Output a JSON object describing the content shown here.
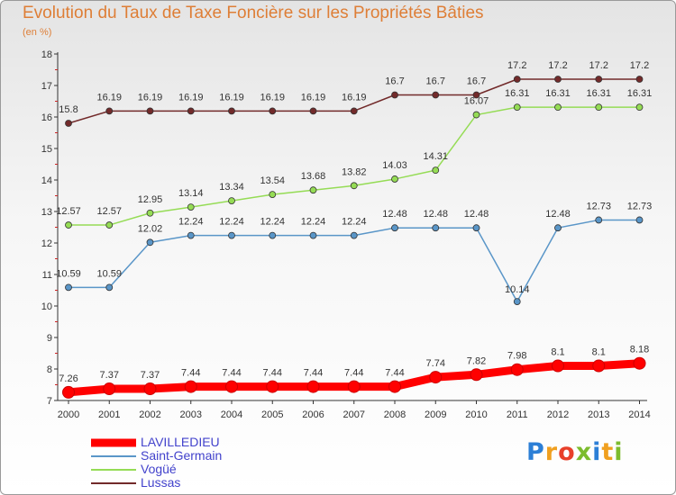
{
  "title": "Evolution du Taux de Taxe Foncière sur les Propriétés Bâties",
  "subtitle": "(en %)",
  "brand": {
    "letters": [
      "P",
      "r",
      "o",
      "x",
      "i",
      "t",
      "i"
    ],
    "colors": [
      "#2c7fd6",
      "#f0a020",
      "#e8402a",
      "#7cbc2e",
      "#2c7fd6",
      "#f0a020",
      "#7cbc2e"
    ]
  },
  "chart_data": {
    "type": "line",
    "x": [
      "2000",
      "2001",
      "2002",
      "2003",
      "2004",
      "2005",
      "2006",
      "2007",
      "2008",
      "2009",
      "2010",
      "2011",
      "2012",
      "2013",
      "2014"
    ],
    "ylim": [
      7,
      18
    ],
    "yticks": [
      "7",
      "8",
      "9",
      "10",
      "11",
      "12",
      "13",
      "14",
      "15",
      "16",
      "17",
      "18"
    ],
    "series": [
      {
        "name": "Lussas",
        "color": "#722a2a",
        "values": [
          15.8,
          16.19,
          16.19,
          16.19,
          16.19,
          16.19,
          16.19,
          16.19,
          16.7,
          16.7,
          16.7,
          17.2,
          17.2,
          17.2,
          17.2
        ],
        "labels": [
          "15.8",
          "16.19",
          "16.19",
          "16.19",
          "16.19",
          "16.19",
          "16.19",
          "16.19",
          "16.7",
          "16.7",
          "16.7",
          "17.2",
          "17.2",
          "17.2",
          "17.2"
        ]
      },
      {
        "name": "Vogüé",
        "color": "#95dc55",
        "values": [
          12.57,
          12.57,
          12.95,
          13.14,
          13.34,
          13.54,
          13.68,
          13.82,
          14.03,
          14.31,
          16.07,
          16.31,
          16.31,
          16.31,
          16.31
        ],
        "labels": [
          "12.57",
          "12.57",
          "12.95",
          "13.14",
          "13.34",
          "13.54",
          "13.68",
          "13.82",
          "14.03",
          "14.31",
          "16.07",
          "16.31",
          "16.31",
          "16.31",
          "16.31"
        ]
      },
      {
        "name": "Saint-Germain",
        "color": "#5a96c8",
        "values": [
          10.59,
          10.59,
          12.02,
          12.24,
          12.24,
          12.24,
          12.24,
          12.24,
          12.48,
          12.48,
          12.48,
          10.14,
          12.48,
          12.73,
          12.73
        ],
        "labels": [
          "10.59",
          "10.59",
          "12.02",
          "12.24",
          "12.24",
          "12.24",
          "12.24",
          "12.24",
          "12.48",
          "12.48",
          "12.48",
          "10.14",
          "12.48",
          "12.73",
          "12.73"
        ]
      },
      {
        "name": "LAVILLEDIEU",
        "color": "#ff0000",
        "values": [
          7.26,
          7.37,
          7.37,
          7.44,
          7.44,
          7.44,
          7.44,
          7.44,
          7.44,
          7.74,
          7.82,
          7.98,
          8.1,
          8.1,
          8.18
        ],
        "labels": [
          "7.26",
          "7.37",
          "7.37",
          "7.44",
          "7.44",
          "7.44",
          "7.44",
          "7.44",
          "7.44",
          "7.74",
          "7.82",
          "7.98",
          "8.1",
          "8.1",
          "8.18"
        ]
      }
    ],
    "legend": [
      "LAVILLEDIEU",
      "Saint-Germain",
      "Vogüé",
      "Lussas"
    ],
    "legend_position": "bottom-left",
    "grid": false
  }
}
